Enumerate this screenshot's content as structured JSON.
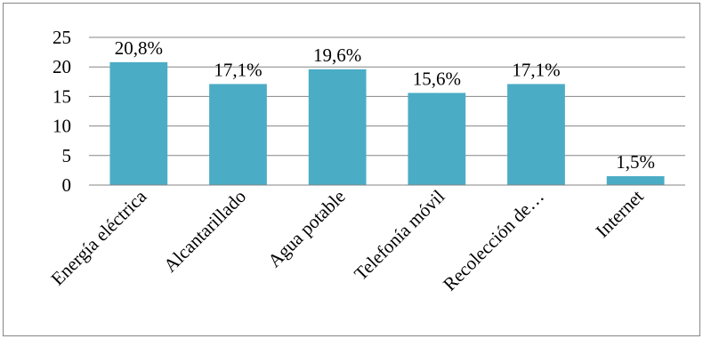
{
  "chart_data": {
    "type": "bar",
    "title": "",
    "xlabel": "",
    "ylabel": "",
    "categories": [
      "Energía eléctrica",
      "Alcantarillado",
      "Agua potable",
      "Telefonía móvil",
      "Recolección de…",
      "Internet"
    ],
    "values": [
      20.8,
      17.1,
      19.6,
      15.6,
      17.1,
      1.5
    ],
    "data_labels": [
      "20,8%",
      "17,1%",
      "19,6%",
      "15,6%",
      "17,1%",
      "1,5%"
    ],
    "ylim": [
      0,
      25
    ],
    "yticks": [
      0,
      5,
      10,
      15,
      20,
      25
    ],
    "ytick_labels": [
      "0",
      "5",
      "10",
      "15",
      "20",
      "25"
    ],
    "grid": true,
    "legend": "none",
    "colors": {
      "bar": "#4BACC6",
      "grid": "#868686",
      "frame": "#868686"
    }
  }
}
